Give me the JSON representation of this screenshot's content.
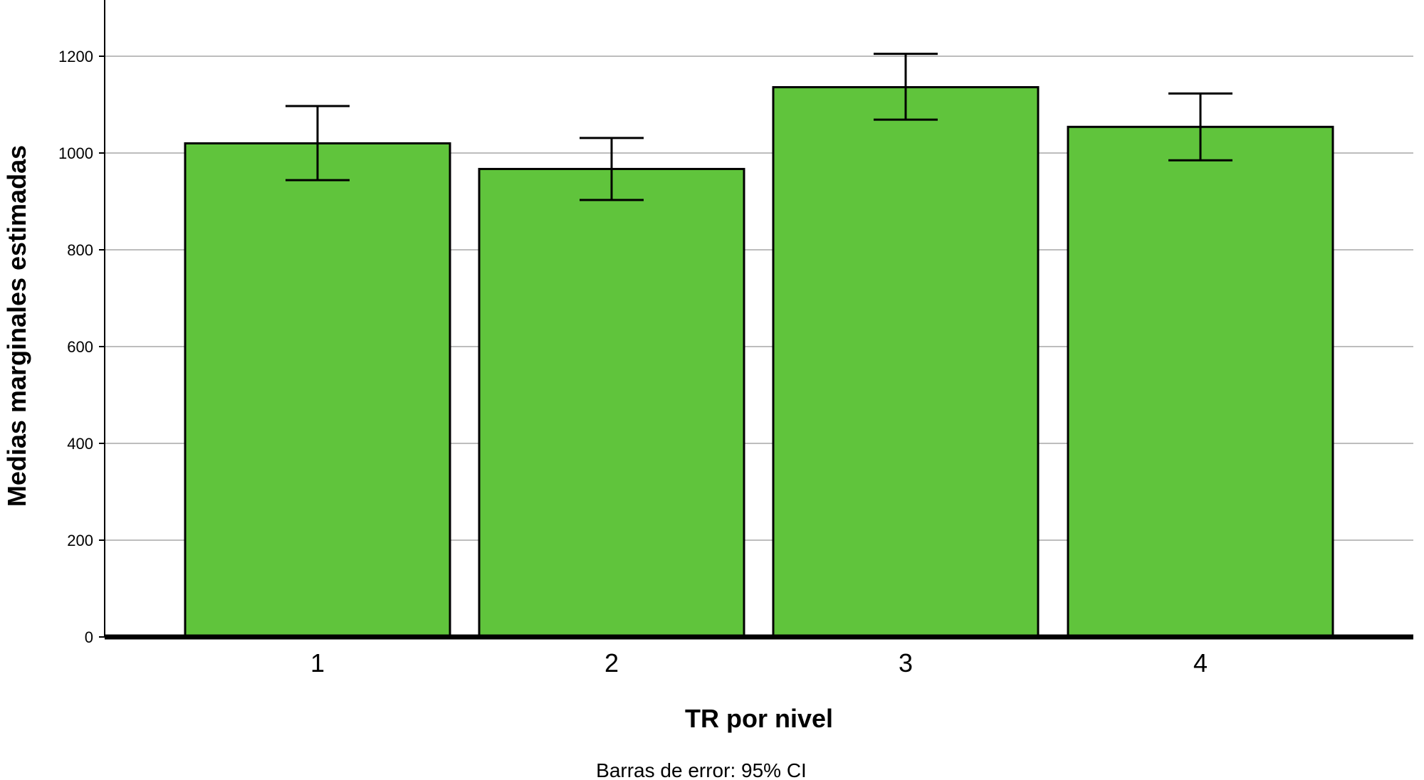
{
  "chart_data": {
    "type": "bar",
    "categories": [
      "1",
      "2",
      "3",
      "4"
    ],
    "values": [
      1020,
      967,
      1136,
      1054
    ],
    "error_bars": {
      "type": "95% CI",
      "lower": [
        944,
        903,
        1069,
        985
      ],
      "upper": [
        1097,
        1031,
        1205,
        1123
      ]
    },
    "xlabel": "TR por nivel",
    "ylabel": "Medias marginales estimadas",
    "ylim": [
      0,
      1300
    ],
    "yticks": [
      0,
      200,
      400,
      600,
      800,
      1000,
      1200
    ],
    "ytick_labels": [
      "0",
      "200",
      "400",
      "600",
      "800",
      "1000",
      "1200"
    ],
    "footnote": "Barras de error: 95% CI",
    "grid": "horizontal",
    "bar_color": "#60c43c",
    "bar_stroke": "#000000",
    "grid_color": "#bdbdbd"
  }
}
